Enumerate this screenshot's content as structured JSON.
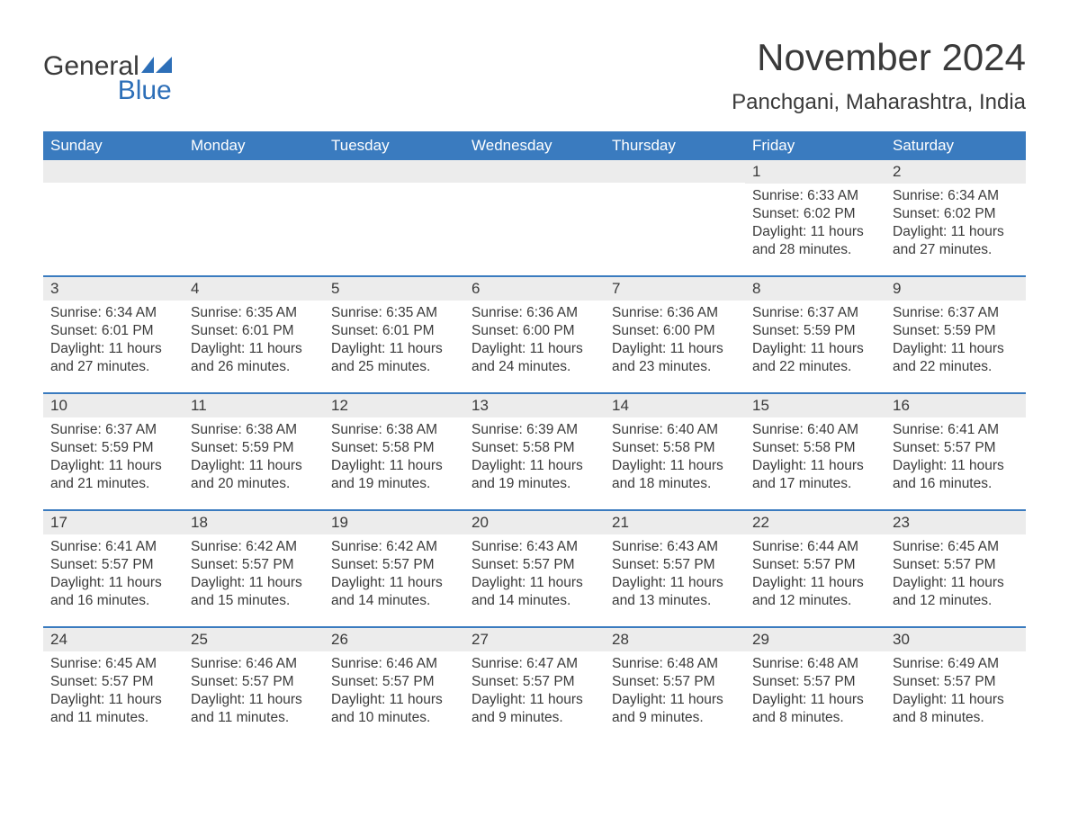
{
  "brand": {
    "name_part1": "General",
    "name_part2": "Blue"
  },
  "title": "November 2024",
  "location": "Panchgani, Maharashtra, India",
  "colors": {
    "header_bg": "#3a7bbf",
    "header_text": "#ffffff",
    "daynum_bg": "#ececec",
    "text": "#3a3a3a",
    "rule": "#3a7bbf",
    "brand_blue": "#2d6fb8"
  },
  "layout": {
    "columns": 7,
    "rows": 5,
    "first_day_column_index": 5
  },
  "weekdays": [
    "Sunday",
    "Monday",
    "Tuesday",
    "Wednesday",
    "Thursday",
    "Friday",
    "Saturday"
  ],
  "days": [
    {
      "n": 1,
      "sunrise": "6:33 AM",
      "sunset": "6:02 PM",
      "daylight": "11 hours and 28 minutes."
    },
    {
      "n": 2,
      "sunrise": "6:34 AM",
      "sunset": "6:02 PM",
      "daylight": "11 hours and 27 minutes."
    },
    {
      "n": 3,
      "sunrise": "6:34 AM",
      "sunset": "6:01 PM",
      "daylight": "11 hours and 27 minutes."
    },
    {
      "n": 4,
      "sunrise": "6:35 AM",
      "sunset": "6:01 PM",
      "daylight": "11 hours and 26 minutes."
    },
    {
      "n": 5,
      "sunrise": "6:35 AM",
      "sunset": "6:01 PM",
      "daylight": "11 hours and 25 minutes."
    },
    {
      "n": 6,
      "sunrise": "6:36 AM",
      "sunset": "6:00 PM",
      "daylight": "11 hours and 24 minutes."
    },
    {
      "n": 7,
      "sunrise": "6:36 AM",
      "sunset": "6:00 PM",
      "daylight": "11 hours and 23 minutes."
    },
    {
      "n": 8,
      "sunrise": "6:37 AM",
      "sunset": "5:59 PM",
      "daylight": "11 hours and 22 minutes."
    },
    {
      "n": 9,
      "sunrise": "6:37 AM",
      "sunset": "5:59 PM",
      "daylight": "11 hours and 22 minutes."
    },
    {
      "n": 10,
      "sunrise": "6:37 AM",
      "sunset": "5:59 PM",
      "daylight": "11 hours and 21 minutes."
    },
    {
      "n": 11,
      "sunrise": "6:38 AM",
      "sunset": "5:59 PM",
      "daylight": "11 hours and 20 minutes."
    },
    {
      "n": 12,
      "sunrise": "6:38 AM",
      "sunset": "5:58 PM",
      "daylight": "11 hours and 19 minutes."
    },
    {
      "n": 13,
      "sunrise": "6:39 AM",
      "sunset": "5:58 PM",
      "daylight": "11 hours and 19 minutes."
    },
    {
      "n": 14,
      "sunrise": "6:40 AM",
      "sunset": "5:58 PM",
      "daylight": "11 hours and 18 minutes."
    },
    {
      "n": 15,
      "sunrise": "6:40 AM",
      "sunset": "5:58 PM",
      "daylight": "11 hours and 17 minutes."
    },
    {
      "n": 16,
      "sunrise": "6:41 AM",
      "sunset": "5:57 PM",
      "daylight": "11 hours and 16 minutes."
    },
    {
      "n": 17,
      "sunrise": "6:41 AM",
      "sunset": "5:57 PM",
      "daylight": "11 hours and 16 minutes."
    },
    {
      "n": 18,
      "sunrise": "6:42 AM",
      "sunset": "5:57 PM",
      "daylight": "11 hours and 15 minutes."
    },
    {
      "n": 19,
      "sunrise": "6:42 AM",
      "sunset": "5:57 PM",
      "daylight": "11 hours and 14 minutes."
    },
    {
      "n": 20,
      "sunrise": "6:43 AM",
      "sunset": "5:57 PM",
      "daylight": "11 hours and 14 minutes."
    },
    {
      "n": 21,
      "sunrise": "6:43 AM",
      "sunset": "5:57 PM",
      "daylight": "11 hours and 13 minutes."
    },
    {
      "n": 22,
      "sunrise": "6:44 AM",
      "sunset": "5:57 PM",
      "daylight": "11 hours and 12 minutes."
    },
    {
      "n": 23,
      "sunrise": "6:45 AM",
      "sunset": "5:57 PM",
      "daylight": "11 hours and 12 minutes."
    },
    {
      "n": 24,
      "sunrise": "6:45 AM",
      "sunset": "5:57 PM",
      "daylight": "11 hours and 11 minutes."
    },
    {
      "n": 25,
      "sunrise": "6:46 AM",
      "sunset": "5:57 PM",
      "daylight": "11 hours and 11 minutes."
    },
    {
      "n": 26,
      "sunrise": "6:46 AM",
      "sunset": "5:57 PM",
      "daylight": "11 hours and 10 minutes."
    },
    {
      "n": 27,
      "sunrise": "6:47 AM",
      "sunset": "5:57 PM",
      "daylight": "11 hours and 9 minutes."
    },
    {
      "n": 28,
      "sunrise": "6:48 AM",
      "sunset": "5:57 PM",
      "daylight": "11 hours and 9 minutes."
    },
    {
      "n": 29,
      "sunrise": "6:48 AM",
      "sunset": "5:57 PM",
      "daylight": "11 hours and 8 minutes."
    },
    {
      "n": 30,
      "sunrise": "6:49 AM",
      "sunset": "5:57 PM",
      "daylight": "11 hours and 8 minutes."
    }
  ],
  "labels": {
    "sunrise": "Sunrise:",
    "sunset": "Sunset:",
    "daylight": "Daylight:"
  }
}
